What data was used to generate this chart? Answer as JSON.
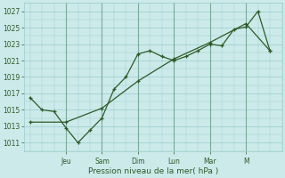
{
  "background_color": "#cceaea",
  "grid_color": "#99cccc",
  "line_color": "#2d5a27",
  "xlabel": "Pression niveau de la mer( hPa )",
  "ylim": [
    1010,
    1028
  ],
  "yticks": [
    1011,
    1013,
    1015,
    1017,
    1019,
    1021,
    1023,
    1025,
    1027
  ],
  "day_labels": [
    "Jeu",
    "Sam",
    "Dim",
    "Lun",
    "Mar",
    "M"
  ],
  "line1_x": [
    0,
    1,
    2,
    3,
    4,
    5,
    6,
    7,
    8,
    9,
    10,
    11,
    12,
    13,
    14,
    15,
    16,
    17,
    18,
    19,
    20
  ],
  "line1_y": [
    1016.5,
    1015.0,
    1014.8,
    1012.8,
    1011.0,
    1012.5,
    1014.0,
    1017.5,
    1019.0,
    1021.8,
    1022.2,
    1021.5,
    1021.0,
    1021.5,
    1022.2,
    1023.0,
    1022.8,
    1024.8,
    1025.1,
    1027.0,
    1022.2
  ],
  "line2_x": [
    0,
    3,
    6,
    9,
    12,
    15,
    18,
    20
  ],
  "line2_y": [
    1013.5,
    1013.5,
    1015.2,
    1018.5,
    1021.2,
    1023.2,
    1025.5,
    1022.2
  ],
  "vline_positions": [
    3,
    6,
    9,
    12,
    15,
    18
  ],
  "day_x_positions": [
    3,
    6,
    9,
    12,
    15,
    18
  ]
}
